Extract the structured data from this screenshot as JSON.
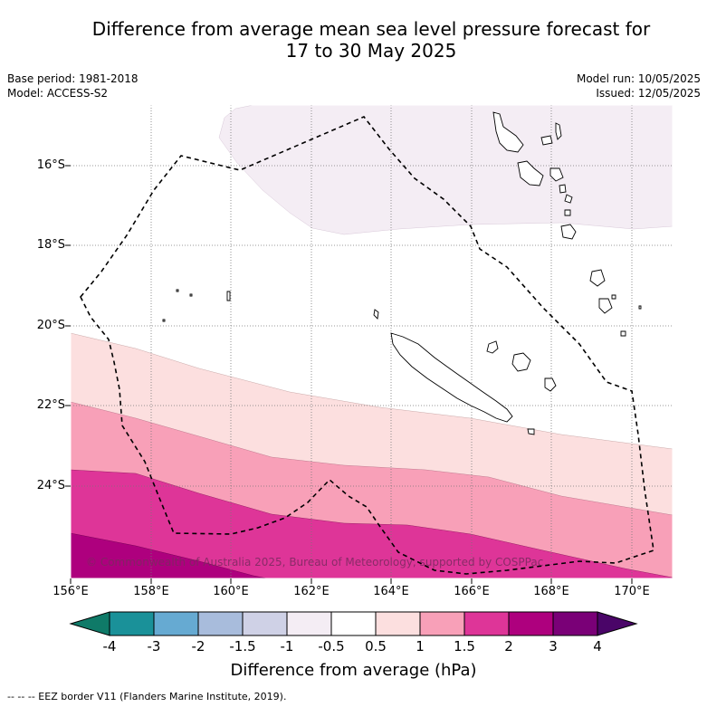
{
  "title_line1": "Difference from average mean sea level pressure forecast for",
  "title_line2": "17 to 30 May 2025",
  "meta": {
    "base_period": "Base period: 1981-2018",
    "model": "Model: ACCESS-S2",
    "model_run": "Model run: 10/05/2025",
    "issued": "Issued: 12/05/2025"
  },
  "map": {
    "lat_labels": [
      "16°S",
      "18°S",
      "20°S",
      "22°S",
      "24°S"
    ],
    "lon_labels": [
      "156°E",
      "158°E",
      "160°E",
      "162°E",
      "164°E",
      "166°E",
      "168°E",
      "170°E"
    ],
    "credit": "© Commonwealth of Australia 2025, Bureau of Meteorology, supported by COSPPac",
    "colors": {
      "bin_-1_-0.5": "#f4edf4",
      "bin_0.5_1": "#fcdfdf",
      "bin_1_1.5": "#f8a0b8",
      "bin_1.5_2": "#de3598",
      "bin_2_3": "#ae007e",
      "coast": "#000000",
      "eez": "#000000"
    }
  },
  "colorbar": {
    "tick_labels": [
      "-4",
      "-3",
      "-2",
      "-1.5",
      "-1",
      "-0.5",
      "0.5",
      "1",
      "1.5",
      "2",
      "3",
      "4"
    ],
    "colors": [
      "#1a9199",
      "#66aad2",
      "#a8bcdc",
      "#cfd1e6",
      "#f4edf4",
      "#ffffff",
      "#fcdfdf",
      "#f8a0b8",
      "#de3598",
      "#ae007e",
      "#7a0077"
    ],
    "under_color": "#0f7a68",
    "over_color": "#4a0568",
    "label": "Difference from average (hPa)"
  },
  "footnote": "--  --  -- EEZ border V11 (Flanders Marine Institute, 2019)."
}
